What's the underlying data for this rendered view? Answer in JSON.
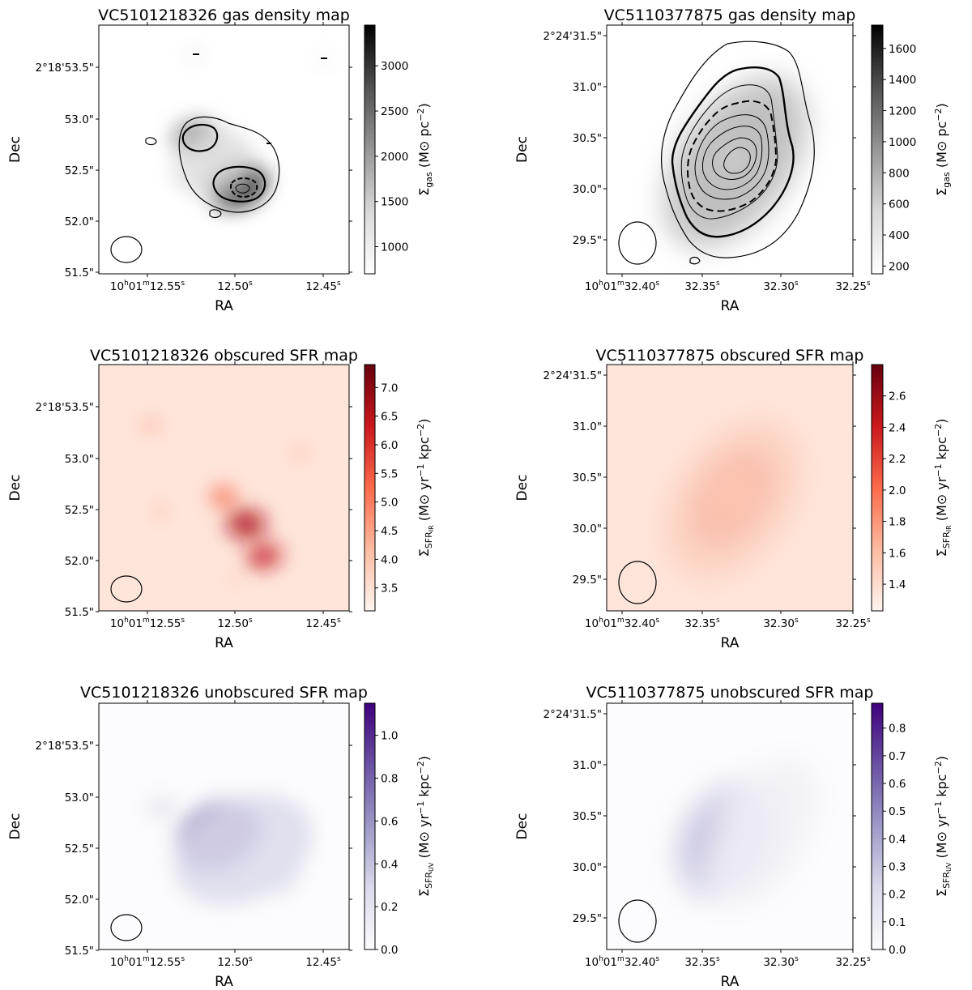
{
  "chart_data": [
    {
      "type": "heatmap",
      "galaxy": "VC5101218326",
      "title": "VC5101218326 gas density map",
      "xlabel": "RA",
      "ylabel": "Dec",
      "colormap": "Greys",
      "colorbar_label": "Σgas (M⊙ pc−2)",
      "colorbar_label_main": "Σ",
      "colorbar_label_sub": "gas",
      "colorbar_label_unit": " (M⊙ pc",
      "colorbar_label_exp": "−2",
      "colorbar_label_close": ")",
      "colorbar_range": [
        700,
        3450
      ],
      "colorbar_ticks": [
        1000,
        1500,
        2000,
        2500,
        3000
      ],
      "colorbar_ticklabels": [
        "1000",
        "1500",
        "2000",
        "2500",
        "3000"
      ],
      "x_ticks": [
        {
          "h": "10",
          "m": "01",
          "s": "12.55"
        },
        {
          "s": "12.50"
        },
        {
          "s": "12.45"
        }
      ],
      "y_ticks": [
        "2°18'53.5\"",
        "53.0\"",
        "52.5\"",
        "52.0\"",
        "51.5\""
      ]
    },
    {
      "type": "heatmap",
      "galaxy": "VC5110377875",
      "title": "VC5110377875 gas density map",
      "xlabel": "RA",
      "ylabel": "Dec",
      "colormap": "Greys",
      "colorbar_label": "Σgas (M⊙ pc−2)",
      "colorbar_label_main": "Σ",
      "colorbar_label_sub": "gas",
      "colorbar_label_unit": " (M⊙ pc",
      "colorbar_label_exp": "−2",
      "colorbar_label_close": ")",
      "colorbar_range": [
        150,
        1750
      ],
      "colorbar_ticks": [
        200,
        400,
        600,
        800,
        1000,
        1200,
        1400,
        1600
      ],
      "colorbar_ticklabels": [
        "200",
        "400",
        "600",
        "800",
        "1000",
        "1200",
        "1400",
        "1600"
      ],
      "x_ticks": [
        {
          "h": "10",
          "m": "01",
          "s": "32.40"
        },
        {
          "s": "32.35"
        },
        {
          "s": "32.30"
        },
        {
          "s": "32.25"
        }
      ],
      "y_ticks": [
        "2°24'31.5\"",
        "31.0\"",
        "30.5\"",
        "30.0\"",
        "29.5\""
      ]
    },
    {
      "type": "heatmap",
      "galaxy": "VC5101218326",
      "title": "VC5101218326 obscured SFR map",
      "xlabel": "RA",
      "ylabel": "Dec",
      "colormap": "Reds",
      "colorbar_label": "ΣSFRIR (M⊙ yr−1 kpc−2)",
      "colorbar_label_main": "Σ",
      "colorbar_label_sub": "SFR",
      "colorbar_label_subsub": "IR",
      "colorbar_label_unit": " (M⊙ yr",
      "colorbar_label_exp": "−1",
      "colorbar_label_unit2": " kpc",
      "colorbar_label_exp2": "−2",
      "colorbar_label_close": ")",
      "colorbar_range": [
        3.1,
        7.4
      ],
      "colorbar_ticks": [
        3.5,
        4.0,
        4.5,
        5.0,
        5.5,
        6.0,
        6.5,
        7.0
      ],
      "colorbar_ticklabels": [
        "3.5",
        "4.0",
        "4.5",
        "5.0",
        "5.5",
        "6.0",
        "6.5",
        "7.0"
      ],
      "x_ticks": [
        {
          "h": "10",
          "m": "01",
          "s": "12.55"
        },
        {
          "s": "12.50"
        },
        {
          "s": "12.45"
        }
      ],
      "y_ticks": [
        "2°18'53.5\"",
        "53.0\"",
        "52.5\"",
        "52.0\"",
        "51.5\""
      ]
    },
    {
      "type": "heatmap",
      "galaxy": "VC5110377875",
      "title": "VC5110377875 obscured SFR map",
      "xlabel": "RA",
      "ylabel": "Dec",
      "colormap": "Reds",
      "colorbar_label": "ΣSFRIR (M⊙ yr−1 kpc−2)",
      "colorbar_label_main": "Σ",
      "colorbar_label_sub": "SFR",
      "colorbar_label_subsub": "IR",
      "colorbar_label_unit": " (M⊙ yr",
      "colorbar_label_exp": "−1",
      "colorbar_label_unit2": " kpc",
      "colorbar_label_exp2": "−2",
      "colorbar_label_close": ")",
      "colorbar_range": [
        1.23,
        2.8
      ],
      "colorbar_ticks": [
        1.4,
        1.6,
        1.8,
        2.0,
        2.2,
        2.4,
        2.6
      ],
      "colorbar_ticklabels": [
        "1.4",
        "1.6",
        "1.8",
        "2.0",
        "2.2",
        "2.4",
        "2.6"
      ],
      "x_ticks": [
        {
          "h": "10",
          "m": "01",
          "s": "32.40"
        },
        {
          "s": "32.35"
        },
        {
          "s": "32.30"
        },
        {
          "s": "32.25"
        }
      ],
      "y_ticks": [
        "2°24'31.5\"",
        "31.0\"",
        "30.5\"",
        "30.0\"",
        "29.5\""
      ]
    },
    {
      "type": "heatmap",
      "galaxy": "VC5101218326",
      "title": "VC5101218326 unobscured SFR map",
      "xlabel": "RA",
      "ylabel": "Dec",
      "colormap": "Purples",
      "colorbar_label": "ΣSFRUV (M⊙ yr−1 kpc−2)",
      "colorbar_label_main": "Σ",
      "colorbar_label_sub": "SFR",
      "colorbar_label_subsub": "UV",
      "colorbar_label_unit": " (M⊙ yr",
      "colorbar_label_exp": "−1",
      "colorbar_label_unit2": " kpc",
      "colorbar_label_exp2": "−2",
      "colorbar_label_close": ")",
      "colorbar_range": [
        0.0,
        1.15
      ],
      "colorbar_ticks": [
        0.0,
        0.2,
        0.4,
        0.6,
        0.8,
        1.0
      ],
      "colorbar_ticklabels": [
        "0.0",
        "0.2",
        "0.4",
        "0.6",
        "0.8",
        "1.0"
      ],
      "x_ticks": [
        {
          "h": "10",
          "m": "01",
          "s": "12.55"
        },
        {
          "s": "12.50"
        },
        {
          "s": "12.45"
        }
      ],
      "y_ticks": [
        "2°18'53.5\"",
        "53.0\"",
        "52.5\"",
        "52.0\"",
        "51.5\""
      ]
    },
    {
      "type": "heatmap",
      "galaxy": "VC5110377875",
      "title": "VC5110377875 unobscured SFR map",
      "xlabel": "RA",
      "ylabel": "Dec",
      "colormap": "Purples",
      "colorbar_label": "ΣSFRUV (M⊙ yr−1 kpc−2)",
      "colorbar_label_main": "Σ",
      "colorbar_label_sub": "SFR",
      "colorbar_label_subsub": "UV",
      "colorbar_label_unit": " (M⊙ yr",
      "colorbar_label_exp": "−1",
      "colorbar_label_unit2": " kpc",
      "colorbar_label_exp2": "−2",
      "colorbar_label_close": ")",
      "colorbar_range": [
        0.0,
        0.89
      ],
      "colorbar_ticks": [
        0.0,
        0.1,
        0.2,
        0.3,
        0.4,
        0.5,
        0.6,
        0.7,
        0.8
      ],
      "colorbar_ticklabels": [
        "0.0",
        "0.1",
        "0.2",
        "0.3",
        "0.4",
        "0.5",
        "0.6",
        "0.7",
        "0.8"
      ],
      "x_ticks": [
        {
          "h": "10",
          "m": "01",
          "s": "32.40"
        },
        {
          "s": "32.35"
        },
        {
          "s": "32.30"
        },
        {
          "s": "32.25"
        }
      ],
      "y_ticks": [
        "2°24'31.5\"",
        "31.0\"",
        "30.5\"",
        "30.0\"",
        "29.5\""
      ]
    }
  ],
  "colormaps": {
    "Greys": [
      "#ffffff",
      "#d9d9d9",
      "#969696",
      "#525252",
      "#000000"
    ],
    "Reds": [
      "#fff5f0",
      "#fcbba1",
      "#fb6a4a",
      "#cb181d",
      "#67000d"
    ],
    "Purples": [
      "#fcfbfd",
      "#dadaeb",
      "#9e9ac8",
      "#6a51a3",
      "#3f007d"
    ]
  }
}
